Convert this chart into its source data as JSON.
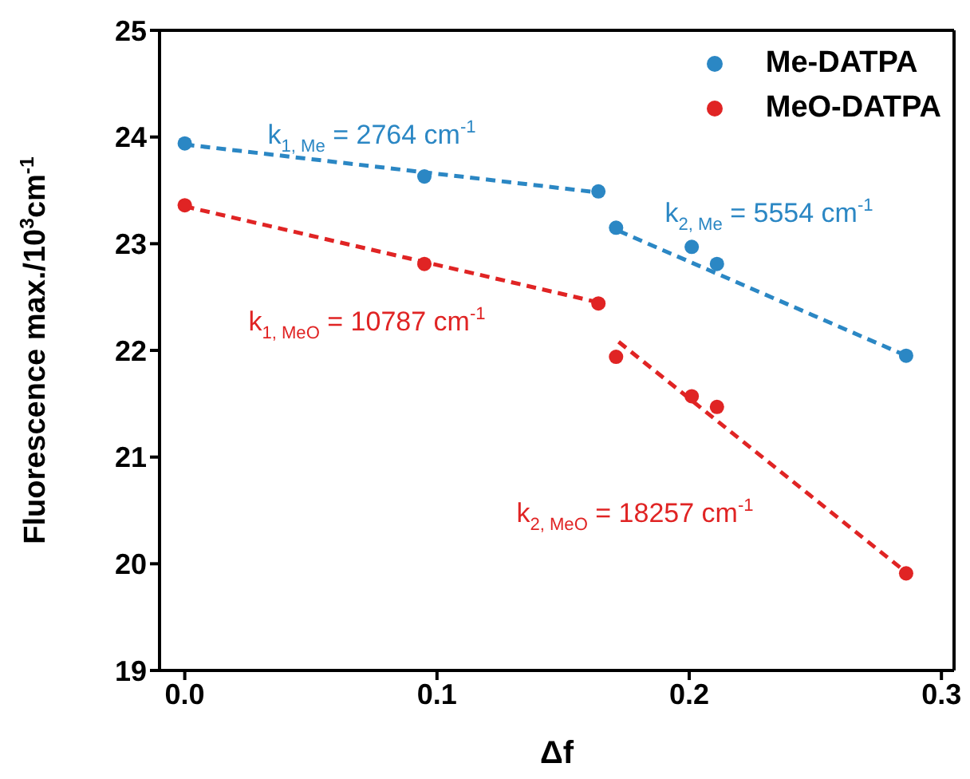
{
  "chart_data": {
    "type": "scatter",
    "xlabel": "Δf",
    "ylabel": "Fluorescence max./10$^{3}$cm$^{-1}$",
    "xlim": [
      -0.01,
      0.305
    ],
    "xticks": [
      {
        "value": 0,
        "label": "0.0"
      },
      0.1,
      0.2,
      0.3
    ],
    "ylim": [
      19,
      25
    ],
    "yticks": [
      19,
      20,
      21,
      22,
      23,
      24,
      25
    ],
    "legend": "top right",
    "marker": "circle",
    "grid": false,
    "series": [
      {
        "name": "Me-DATPA",
        "color": "#2b87c4",
        "x": [
          0,
          0.095,
          0.164,
          0.171,
          0.201,
          0.211,
          0.286
        ],
        "values": [
          23.94,
          23.63,
          23.49,
          23.15,
          22.97,
          22.81,
          21.95
        ]
      },
      {
        "name": "MeO-DATPA",
        "color": "#e02424",
        "x": [
          0,
          0.095,
          0.164,
          0.171,
          0.201,
          0.211,
          0.286
        ],
        "values": [
          23.36,
          22.81,
          22.44,
          21.94,
          21.57,
          21.47,
          19.91
        ]
      },
      {
        "type": "line",
        "color": "#2b87c4",
        "line_style": "dashed",
        "marker": "none",
        "x": [
          0,
          0.164
        ],
        "values": [
          23.93,
          23.48
        ]
      },
      {
        "type": "line",
        "color": "#2b87c4",
        "line_style": "dashed",
        "marker": "none",
        "x": [
          0.172,
          0.286
        ],
        "values": [
          23.12,
          21.95
        ]
      },
      {
        "type": "line",
        "color": "#e02424",
        "line_style": "dashed",
        "marker": "none",
        "x": [
          0,
          0.164
        ],
        "values": [
          23.35,
          22.45
        ]
      },
      {
        "type": "line",
        "color": "#e02424",
        "line_style": "dashed",
        "marker": "none",
        "x": [
          0.172,
          0.286
        ],
        "values": [
          22.08,
          19.92
        ]
      }
    ],
    "annotations": [
      "k$_{1, Me}$ = 2764 cm$^{-1}$",
      "k$_{2, Me}$ = 5554 cm$^{-1}$",
      "k$_{1, MeO}$ = 10787 cm$^{-1}$",
      "k$_{2, MeO}$ = 18257 cm$^{-1}$"
    ]
  }
}
